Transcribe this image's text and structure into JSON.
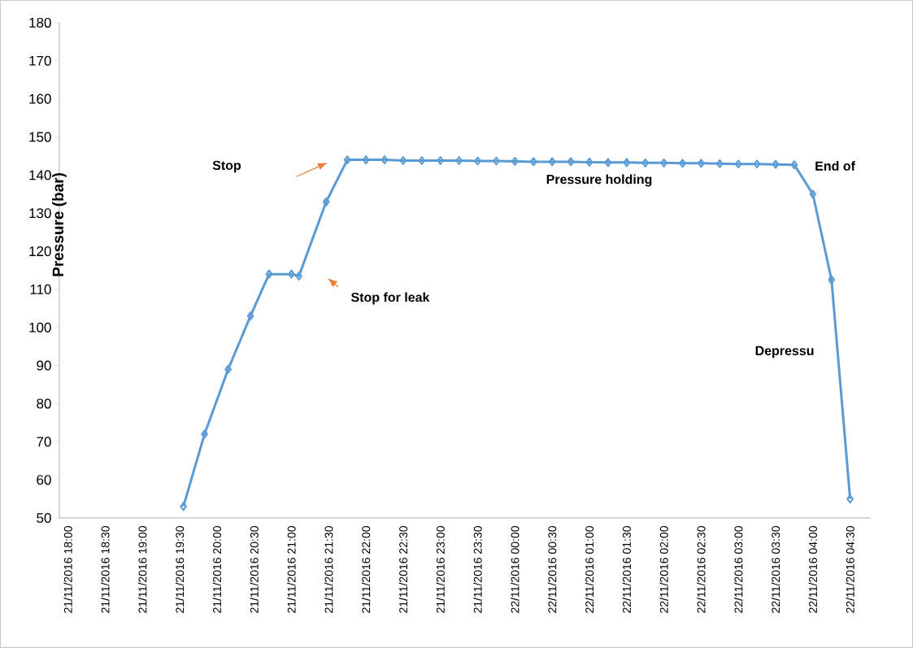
{
  "chart_data": {
    "type": "line",
    "ylabel": "Pressure (bar)",
    "x": [
      "2016-11-21T19:33",
      "2016-11-21T19:50",
      "2016-11-21T20:09",
      "2016-11-21T20:27",
      "2016-11-21T20:42",
      "2016-11-21T21:00",
      "2016-11-21T21:06",
      "2016-11-21T21:28",
      "2016-11-21T21:45",
      "2016-11-21T22:00",
      "2016-11-21T22:15",
      "2016-11-21T22:30",
      "2016-11-21T22:45",
      "2016-11-21T23:00",
      "2016-11-21T23:15",
      "2016-11-21T23:30",
      "2016-11-21T23:45",
      "2016-11-22T00:00",
      "2016-11-22T00:15",
      "2016-11-22T00:30",
      "2016-11-22T00:45",
      "2016-11-22T01:00",
      "2016-11-22T01:15",
      "2016-11-22T01:30",
      "2016-11-22T01:45",
      "2016-11-22T02:00",
      "2016-11-22T02:15",
      "2016-11-22T02:30",
      "2016-11-22T02:45",
      "2016-11-22T03:00",
      "2016-11-22T03:15",
      "2016-11-22T03:30",
      "2016-11-22T03:45",
      "2016-11-22T04:00",
      "2016-11-22T04:15",
      "2016-11-22T04:30"
    ],
    "series": [
      {
        "color": "#5b9bd5",
        "values": [
          53,
          72,
          89,
          103,
          114,
          114,
          113.5,
          133,
          144,
          144,
          144,
          143.8,
          143.8,
          143.8,
          143.8,
          143.7,
          143.7,
          143.6,
          143.5,
          143.5,
          143.5,
          143.4,
          143.3,
          143.3,
          143.2,
          143.2,
          143.1,
          143.1,
          143,
          142.9,
          142.9,
          142.8,
          142.7,
          135,
          112.5,
          55
        ]
      }
    ],
    "marker": "diamond",
    "line_style": "solid",
    "grid": false,
    "legend": false,
    "xlim": [
      "2016-11-21T17:53",
      "2016-11-22T04:46"
    ],
    "ylim": [
      50,
      180
    ],
    "yticks": [
      50,
      60,
      70,
      80,
      90,
      100,
      110,
      120,
      130,
      140,
      150,
      160,
      170,
      180
    ],
    "xticks": [
      {
        "value": "2016-11-21T18:00",
        "label": "21/11/2016 18:00"
      },
      {
        "value": "2016-11-21T18:30",
        "label": "21/11/2016 18:30"
      },
      {
        "value": "2016-11-21T19:00",
        "label": "21/11/2016 19:00"
      },
      {
        "value": "2016-11-21T19:30",
        "label": "21/11/2016 19:30"
      },
      {
        "value": "2016-11-21T20:00",
        "label": "21/11/2016 20:00"
      },
      {
        "value": "2016-11-21T20:30",
        "label": "21/11/2016 20:30"
      },
      {
        "value": "2016-11-21T21:00",
        "label": "21/11/2016 21:00"
      },
      {
        "value": "2016-11-21T21:30",
        "label": "21/11/2016 21:30"
      },
      {
        "value": "2016-11-21T22:00",
        "label": "21/11/2016 22:00"
      },
      {
        "value": "2016-11-21T22:30",
        "label": "21/11/2016 22:30"
      },
      {
        "value": "2016-11-21T23:00",
        "label": "21/11/2016 23:00"
      },
      {
        "value": "2016-11-21T23:30",
        "label": "21/11/2016 23:30"
      },
      {
        "value": "2016-11-22T00:00",
        "label": "22/11/2016 00:00"
      },
      {
        "value": "2016-11-22T00:30",
        "label": "22/11/2016 00:30"
      },
      {
        "value": "2016-11-22T01:00",
        "label": "22/11/2016 01:00"
      },
      {
        "value": "2016-11-22T01:30",
        "label": "22/11/2016 01:30"
      },
      {
        "value": "2016-11-22T02:00",
        "label": "22/11/2016 02:00"
      },
      {
        "value": "2016-11-22T02:30",
        "label": "22/11/2016 02:30"
      },
      {
        "value": "2016-11-22T03:00",
        "label": "22/11/2016 03:00"
      },
      {
        "value": "2016-11-22T03:30",
        "label": "22/11/2016 03:30"
      },
      {
        "value": "2016-11-22T04:00",
        "label": "22/11/2016 04:00"
      },
      {
        "value": "2016-11-22T04:30",
        "label": "22/11/2016 04:30"
      }
    ],
    "annotations": [
      "Stop",
      "Stop for leak",
      "Pressure holding",
      "End of",
      "Depressu"
    ]
  }
}
